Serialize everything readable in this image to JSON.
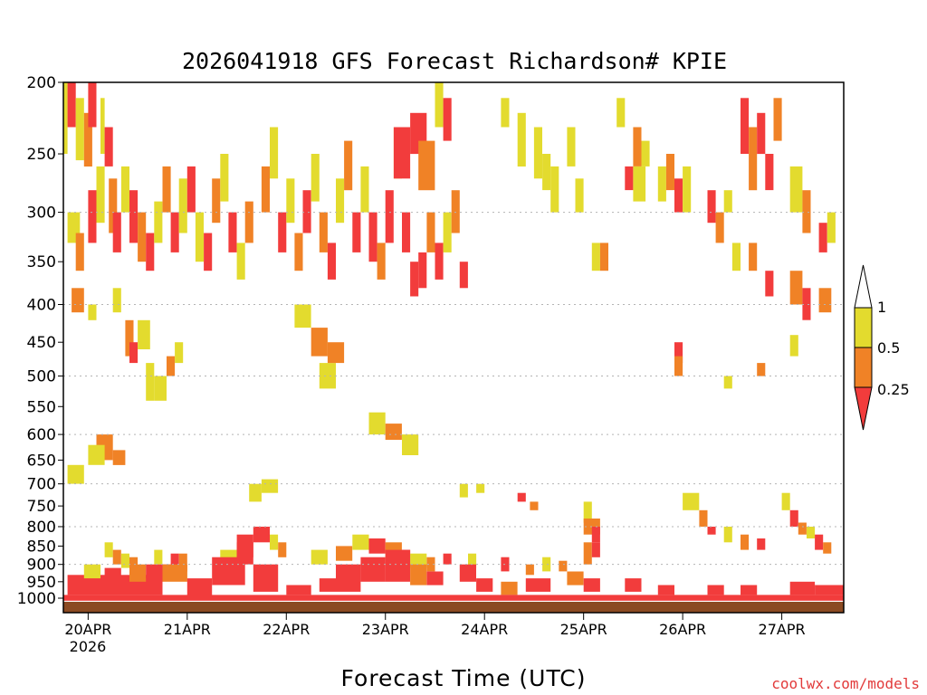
{
  "credit": "coolwx.com/models",
  "colors": {
    "lt_0_25": "#f23c3c",
    "0_25_to_0_5": "#f08226",
    "0_5_to_1": "#e3db2e",
    "ground": "#8b4a22",
    "grid": "#b4b4b4",
    "credit": "#e23a3a"
  },
  "colorbar": {
    "labels": [
      "1",
      "0.5",
      "0.25"
    ]
  },
  "chart_data": {
    "type": "heatmap",
    "title": "2026041918 GFS Forecast Richardson# KPIE",
    "xlabel": "Forecast Time (UTC)",
    "ylabel": "",
    "x_units": "hours since 2026-04-19 18 UTC",
    "xlim": [
      0,
      189
    ],
    "x_tick_values": [
      6,
      30,
      54,
      78,
      102,
      126,
      150,
      174
    ],
    "x_tick_labels": [
      "20APR",
      "21APR",
      "22APR",
      "23APR",
      "24APR",
      "25APR",
      "26APR",
      "27APR"
    ],
    "x_year_label": "2026",
    "ylim": [
      1000,
      200
    ],
    "y_scale": "log",
    "y_ticks": [
      200,
      250,
      300,
      350,
      400,
      450,
      500,
      550,
      600,
      650,
      700,
      750,
      800,
      850,
      900,
      950,
      1000
    ],
    "grid": "dotted horizontal lines at 300, 400, 500, 600, 700, 800, 900 hPa",
    "legend": "colorbar right",
    "categories": [
      "< 0.25",
      "0.25 - 0.5",
      "0.5 - 1"
    ],
    "cells": [
      [
        0,
        1,
        200,
        250,
        2
      ],
      [
        1,
        3,
        200,
        230,
        0
      ],
      [
        3,
        5,
        210,
        255,
        2
      ],
      [
        5,
        7,
        220,
        260,
        1
      ],
      [
        6,
        8,
        200,
        230,
        0
      ],
      [
        9,
        10,
        210,
        250,
        2
      ],
      [
        10,
        12,
        230,
        260,
        0
      ],
      [
        1,
        4,
        300,
        330,
        2
      ],
      [
        3,
        5,
        320,
        360,
        1
      ],
      [
        6,
        8,
        280,
        330,
        0
      ],
      [
        8,
        10,
        260,
        310,
        2
      ],
      [
        11,
        13,
        270,
        320,
        1
      ],
      [
        12,
        14,
        300,
        340,
        0
      ],
      [
        14,
        16,
        260,
        300,
        2
      ],
      [
        16,
        18,
        280,
        330,
        0
      ],
      [
        18,
        20,
        300,
        350,
        1
      ],
      [
        20,
        22,
        320,
        360,
        0
      ],
      [
        22,
        24,
        290,
        330,
        2
      ],
      [
        24,
        26,
        260,
        300,
        1
      ],
      [
        26,
        28,
        300,
        340,
        0
      ],
      [
        28,
        30,
        270,
        320,
        2
      ],
      [
        2,
        5,
        380,
        410,
        1
      ],
      [
        6,
        8,
        400,
        420,
        2
      ],
      [
        12,
        14,
        380,
        410,
        2
      ],
      [
        15,
        17,
        420,
        470,
        1
      ],
      [
        16,
        18,
        450,
        480,
        0
      ],
      [
        18,
        21,
        420,
        460,
        2
      ],
      [
        30,
        32,
        260,
        300,
        0
      ],
      [
        32,
        34,
        300,
        350,
        2
      ],
      [
        34,
        36,
        320,
        360,
        0
      ],
      [
        36,
        38,
        270,
        310,
        1
      ],
      [
        38,
        40,
        250,
        290,
        2
      ],
      [
        40,
        42,
        300,
        340,
        0
      ],
      [
        42,
        44,
        330,
        370,
        2
      ],
      [
        44,
        46,
        290,
        330,
        1
      ],
      [
        20,
        22,
        480,
        540,
        2
      ],
      [
        22,
        25,
        500,
        540,
        2
      ],
      [
        25,
        27,
        470,
        500,
        1
      ],
      [
        27,
        29,
        450,
        480,
        2
      ],
      [
        48,
        50,
        260,
        300,
        1
      ],
      [
        50,
        52,
        230,
        270,
        2
      ],
      [
        52,
        54,
        300,
        340,
        0
      ],
      [
        54,
        56,
        270,
        310,
        2
      ],
      [
        56,
        58,
        320,
        360,
        1
      ],
      [
        58,
        60,
        280,
        320,
        0
      ],
      [
        60,
        62,
        250,
        290,
        2
      ],
      [
        62,
        64,
        300,
        340,
        1
      ],
      [
        64,
        66,
        330,
        370,
        0
      ],
      [
        66,
        68,
        270,
        310,
        2
      ],
      [
        68,
        70,
        240,
        280,
        1
      ],
      [
        70,
        72,
        300,
        340,
        0
      ],
      [
        72,
        74,
        260,
        300,
        2
      ],
      [
        74,
        76,
        300,
        350,
        0
      ],
      [
        76,
        78,
        330,
        370,
        1
      ],
      [
        78,
        80,
        280,
        330,
        0
      ],
      [
        80,
        82,
        230,
        270,
        2
      ],
      [
        82,
        84,
        300,
        340,
        0
      ],
      [
        84,
        86,
        350,
        390,
        0
      ],
      [
        86,
        88,
        340,
        380,
        0
      ],
      [
        88,
        90,
        300,
        340,
        1
      ],
      [
        90,
        92,
        330,
        370,
        0
      ],
      [
        92,
        94,
        300,
        340,
        2
      ],
      [
        94,
        96,
        280,
        320,
        1
      ],
      [
        96,
        98,
        350,
        380,
        0
      ],
      [
        56,
        60,
        400,
        430,
        2
      ],
      [
        60,
        64,
        430,
        470,
        1
      ],
      [
        62,
        66,
        480,
        520,
        2
      ],
      [
        64,
        68,
        450,
        480,
        1
      ],
      [
        74,
        78,
        560,
        600,
        2
      ],
      [
        78,
        82,
        580,
        610,
        1
      ],
      [
        82,
        86,
        600,
        640,
        2
      ],
      [
        80,
        84,
        230,
        270,
        0
      ],
      [
        84,
        88,
        220,
        250,
        0
      ],
      [
        86,
        90,
        240,
        280,
        1
      ],
      [
        90,
        92,
        200,
        230,
        2
      ],
      [
        92,
        94,
        210,
        240,
        0
      ],
      [
        106,
        108,
        210,
        230,
        2
      ],
      [
        110,
        112,
        220,
        260,
        2
      ],
      [
        114,
        116,
        230,
        270,
        2
      ],
      [
        116,
        118,
        250,
        280,
        2
      ],
      [
        118,
        120,
        260,
        300,
        2
      ],
      [
        122,
        124,
        230,
        260,
        2
      ],
      [
        124,
        126,
        270,
        300,
        2
      ],
      [
        128,
        130,
        330,
        360,
        2
      ],
      [
        130,
        132,
        330,
        360,
        1
      ],
      [
        134,
        136,
        210,
        230,
        2
      ],
      [
        138,
        140,
        230,
        260,
        1
      ],
      [
        140,
        142,
        240,
        260,
        2
      ],
      [
        136,
        138,
        260,
        280,
        0
      ],
      [
        138,
        141,
        260,
        290,
        2
      ],
      [
        144,
        146,
        260,
        290,
        2
      ],
      [
        146,
        148,
        250,
        280,
        1
      ],
      [
        148,
        150,
        270,
        300,
        0
      ],
      [
        150,
        152,
        260,
        300,
        2
      ],
      [
        156,
        158,
        280,
        310,
        0
      ],
      [
        158,
        160,
        300,
        330,
        1
      ],
      [
        160,
        162,
        280,
        300,
        2
      ],
      [
        164,
        166,
        210,
        250,
        0
      ],
      [
        166,
        168,
        230,
        280,
        1
      ],
      [
        168,
        170,
        220,
        250,
        0
      ],
      [
        170,
        172,
        250,
        280,
        0
      ],
      [
        172,
        174,
        210,
        240,
        1
      ],
      [
        176,
        179,
        260,
        300,
        2
      ],
      [
        179,
        181,
        280,
        320,
        1
      ],
      [
        183,
        185,
        310,
        340,
        0
      ],
      [
        185,
        187,
        300,
        330,
        2
      ],
      [
        162,
        164,
        330,
        360,
        2
      ],
      [
        166,
        168,
        330,
        360,
        1
      ],
      [
        170,
        172,
        360,
        390,
        0
      ],
      [
        176,
        179,
        360,
        400,
        1
      ],
      [
        179,
        181,
        380,
        420,
        0
      ],
      [
        183,
        186,
        380,
        410,
        1
      ],
      [
        148,
        150,
        450,
        480,
        0
      ],
      [
        148,
        150,
        470,
        500,
        1
      ],
      [
        160,
        162,
        500,
        520,
        2
      ],
      [
        168,
        170,
        480,
        500,
        1
      ],
      [
        176,
        178,
        440,
        470,
        2
      ],
      [
        8,
        12,
        600,
        650,
        1
      ],
      [
        6,
        10,
        620,
        660,
        2
      ],
      [
        12,
        15,
        630,
        660,
        1
      ],
      [
        1,
        5,
        660,
        700,
        2
      ],
      [
        45,
        48,
        700,
        740,
        2
      ],
      [
        48,
        52,
        690,
        720,
        2
      ],
      [
        96,
        98,
        700,
        730,
        2
      ],
      [
        100,
        102,
        700,
        720,
        2
      ],
      [
        110,
        112,
        720,
        740,
        0
      ],
      [
        113,
        115,
        740,
        760,
        1
      ],
      [
        126,
        128,
        740,
        790,
        2
      ],
      [
        126,
        130,
        780,
        820,
        1
      ],
      [
        128,
        130,
        800,
        840,
        0
      ],
      [
        126,
        128,
        840,
        900,
        1
      ],
      [
        128,
        130,
        840,
        880,
        0
      ],
      [
        150,
        154,
        720,
        760,
        2
      ],
      [
        154,
        156,
        760,
        800,
        1
      ],
      [
        156,
        158,
        800,
        820,
        0
      ],
      [
        160,
        162,
        800,
        840,
        2
      ],
      [
        164,
        166,
        820,
        860,
        1
      ],
      [
        168,
        170,
        830,
        860,
        0
      ],
      [
        174,
        176,
        720,
        760,
        2
      ],
      [
        176,
        178,
        760,
        800,
        0
      ],
      [
        178,
        180,
        790,
        820,
        1
      ],
      [
        180,
        182,
        800,
        830,
        2
      ],
      [
        182,
        184,
        820,
        860,
        0
      ],
      [
        184,
        186,
        840,
        870,
        1
      ],
      [
        10,
        12,
        840,
        880,
        2
      ],
      [
        12,
        14,
        860,
        900,
        1
      ],
      [
        14,
        16,
        870,
        910,
        2
      ],
      [
        16,
        18,
        880,
        920,
        1
      ],
      [
        22,
        24,
        860,
        900,
        2
      ],
      [
        26,
        28,
        870,
        910,
        0
      ],
      [
        28,
        30,
        870,
        920,
        1
      ],
      [
        38,
        42,
        860,
        900,
        2
      ],
      [
        42,
        46,
        840,
        880,
        0
      ],
      [
        46,
        50,
        800,
        840,
        0
      ],
      [
        50,
        52,
        820,
        860,
        2
      ],
      [
        52,
        54,
        840,
        880,
        1
      ],
      [
        60,
        64,
        860,
        900,
        2
      ],
      [
        66,
        70,
        850,
        890,
        1
      ],
      [
        70,
        74,
        820,
        860,
        2
      ],
      [
        74,
        78,
        830,
        870,
        0
      ],
      [
        78,
        82,
        840,
        880,
        1
      ],
      [
        82,
        84,
        860,
        900,
        0
      ],
      [
        84,
        88,
        870,
        910,
        2
      ],
      [
        88,
        90,
        880,
        920,
        1
      ],
      [
        92,
        94,
        870,
        900,
        0
      ],
      [
        98,
        100,
        870,
        910,
        2
      ],
      [
        106,
        108,
        880,
        920,
        0
      ],
      [
        112,
        114,
        900,
        930,
        1
      ],
      [
        116,
        118,
        880,
        920,
        2
      ],
      [
        120,
        122,
        890,
        920,
        1
      ],
      [
        1,
        24,
        930,
        990,
        0
      ],
      [
        5,
        9,
        900,
        940,
        2
      ],
      [
        10,
        14,
        910,
        960,
        0
      ],
      [
        16,
        20,
        900,
        950,
        1
      ],
      [
        20,
        26,
        900,
        940,
        0
      ],
      [
        24,
        30,
        900,
        950,
        1
      ],
      [
        30,
        36,
        940,
        990,
        0
      ],
      [
        36,
        44,
        880,
        960,
        0
      ],
      [
        42,
        46,
        820,
        900,
        0
      ],
      [
        46,
        52,
        900,
        980,
        0
      ],
      [
        54,
        60,
        960,
        990,
        0
      ],
      [
        62,
        66,
        940,
        980,
        0
      ],
      [
        66,
        72,
        900,
        980,
        0
      ],
      [
        72,
        78,
        880,
        950,
        0
      ],
      [
        78,
        84,
        860,
        950,
        0
      ],
      [
        84,
        88,
        900,
        960,
        1
      ],
      [
        88,
        92,
        920,
        960,
        0
      ],
      [
        96,
        100,
        900,
        950,
        0
      ],
      [
        100,
        104,
        940,
        980,
        0
      ],
      [
        106,
        110,
        950,
        990,
        1
      ],
      [
        112,
        118,
        940,
        980,
        0
      ],
      [
        122,
        126,
        920,
        960,
        1
      ],
      [
        126,
        130,
        940,
        980,
        0
      ],
      [
        136,
        140,
        940,
        980,
        0
      ],
      [
        144,
        148,
        960,
        990,
        0
      ],
      [
        156,
        160,
        960,
        990,
        0
      ],
      [
        164,
        168,
        960,
        990,
        0
      ],
      [
        176,
        182,
        950,
        990,
        0
      ],
      [
        182,
        189,
        960,
        990,
        0
      ],
      [
        0,
        189,
        990,
        1008,
        0
      ]
    ]
  }
}
